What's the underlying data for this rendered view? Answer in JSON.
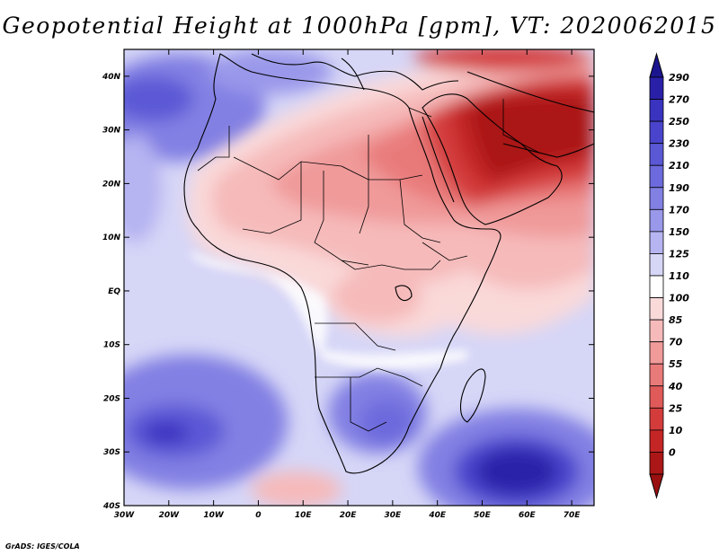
{
  "title": "Geopotential Height at 1000hPa [gpm], VT: 2020062015",
  "credit": "GrADS: IGES/COLA",
  "map": {
    "projection": "lat-lon",
    "lon_range": [
      -30,
      75
    ],
    "lat_range": [
      -40,
      45
    ],
    "x_ticks": [
      {
        "lon": -30,
        "label": "30W"
      },
      {
        "lon": -20,
        "label": "20W"
      },
      {
        "lon": -10,
        "label": "10W"
      },
      {
        "lon": 0,
        "label": "0"
      },
      {
        "lon": 10,
        "label": "10E"
      },
      {
        "lon": 20,
        "label": "20E"
      },
      {
        "lon": 30,
        "label": "30E"
      },
      {
        "lon": 40,
        "label": "40E"
      },
      {
        "lon": 50,
        "label": "50E"
      },
      {
        "lon": 60,
        "label": "60E"
      },
      {
        "lon": 70,
        "label": "70E"
      }
    ],
    "y_ticks": [
      {
        "lat": 40,
        "label": "40N"
      },
      {
        "lat": 30,
        "label": "30N"
      },
      {
        "lat": 20,
        "label": "20N"
      },
      {
        "lat": 10,
        "label": "10N"
      },
      {
        "lat": 0,
        "label": "EQ"
      },
      {
        "lat": -10,
        "label": "10S"
      },
      {
        "lat": -20,
        "label": "20S"
      },
      {
        "lat": -30,
        "label": "30S"
      },
      {
        "lat": -40,
        "label": "40S"
      }
    ]
  },
  "colorbar": {
    "levels": [
      "290",
      "270",
      "250",
      "230",
      "210",
      "190",
      "170",
      "150",
      "125",
      "110",
      "100",
      "85",
      "70",
      "55",
      "40",
      "25",
      "10",
      "0"
    ],
    "colors": [
      "#2a20a8",
      "#3a33c0",
      "#4a44cc",
      "#5b58d6",
      "#6d6add",
      "#8280e3",
      "#9a98ea",
      "#b6b4f1",
      "#d6d6f7",
      "#ffffff",
      "#fad9d9",
      "#f6baba",
      "#f09a9a",
      "#e97a7a",
      "#e05a5a",
      "#d43c3c",
      "#c42626",
      "#ab1717"
    ],
    "top_arrow_color": "#1c1590",
    "bottom_arrow_color": "#9a1010"
  }
}
